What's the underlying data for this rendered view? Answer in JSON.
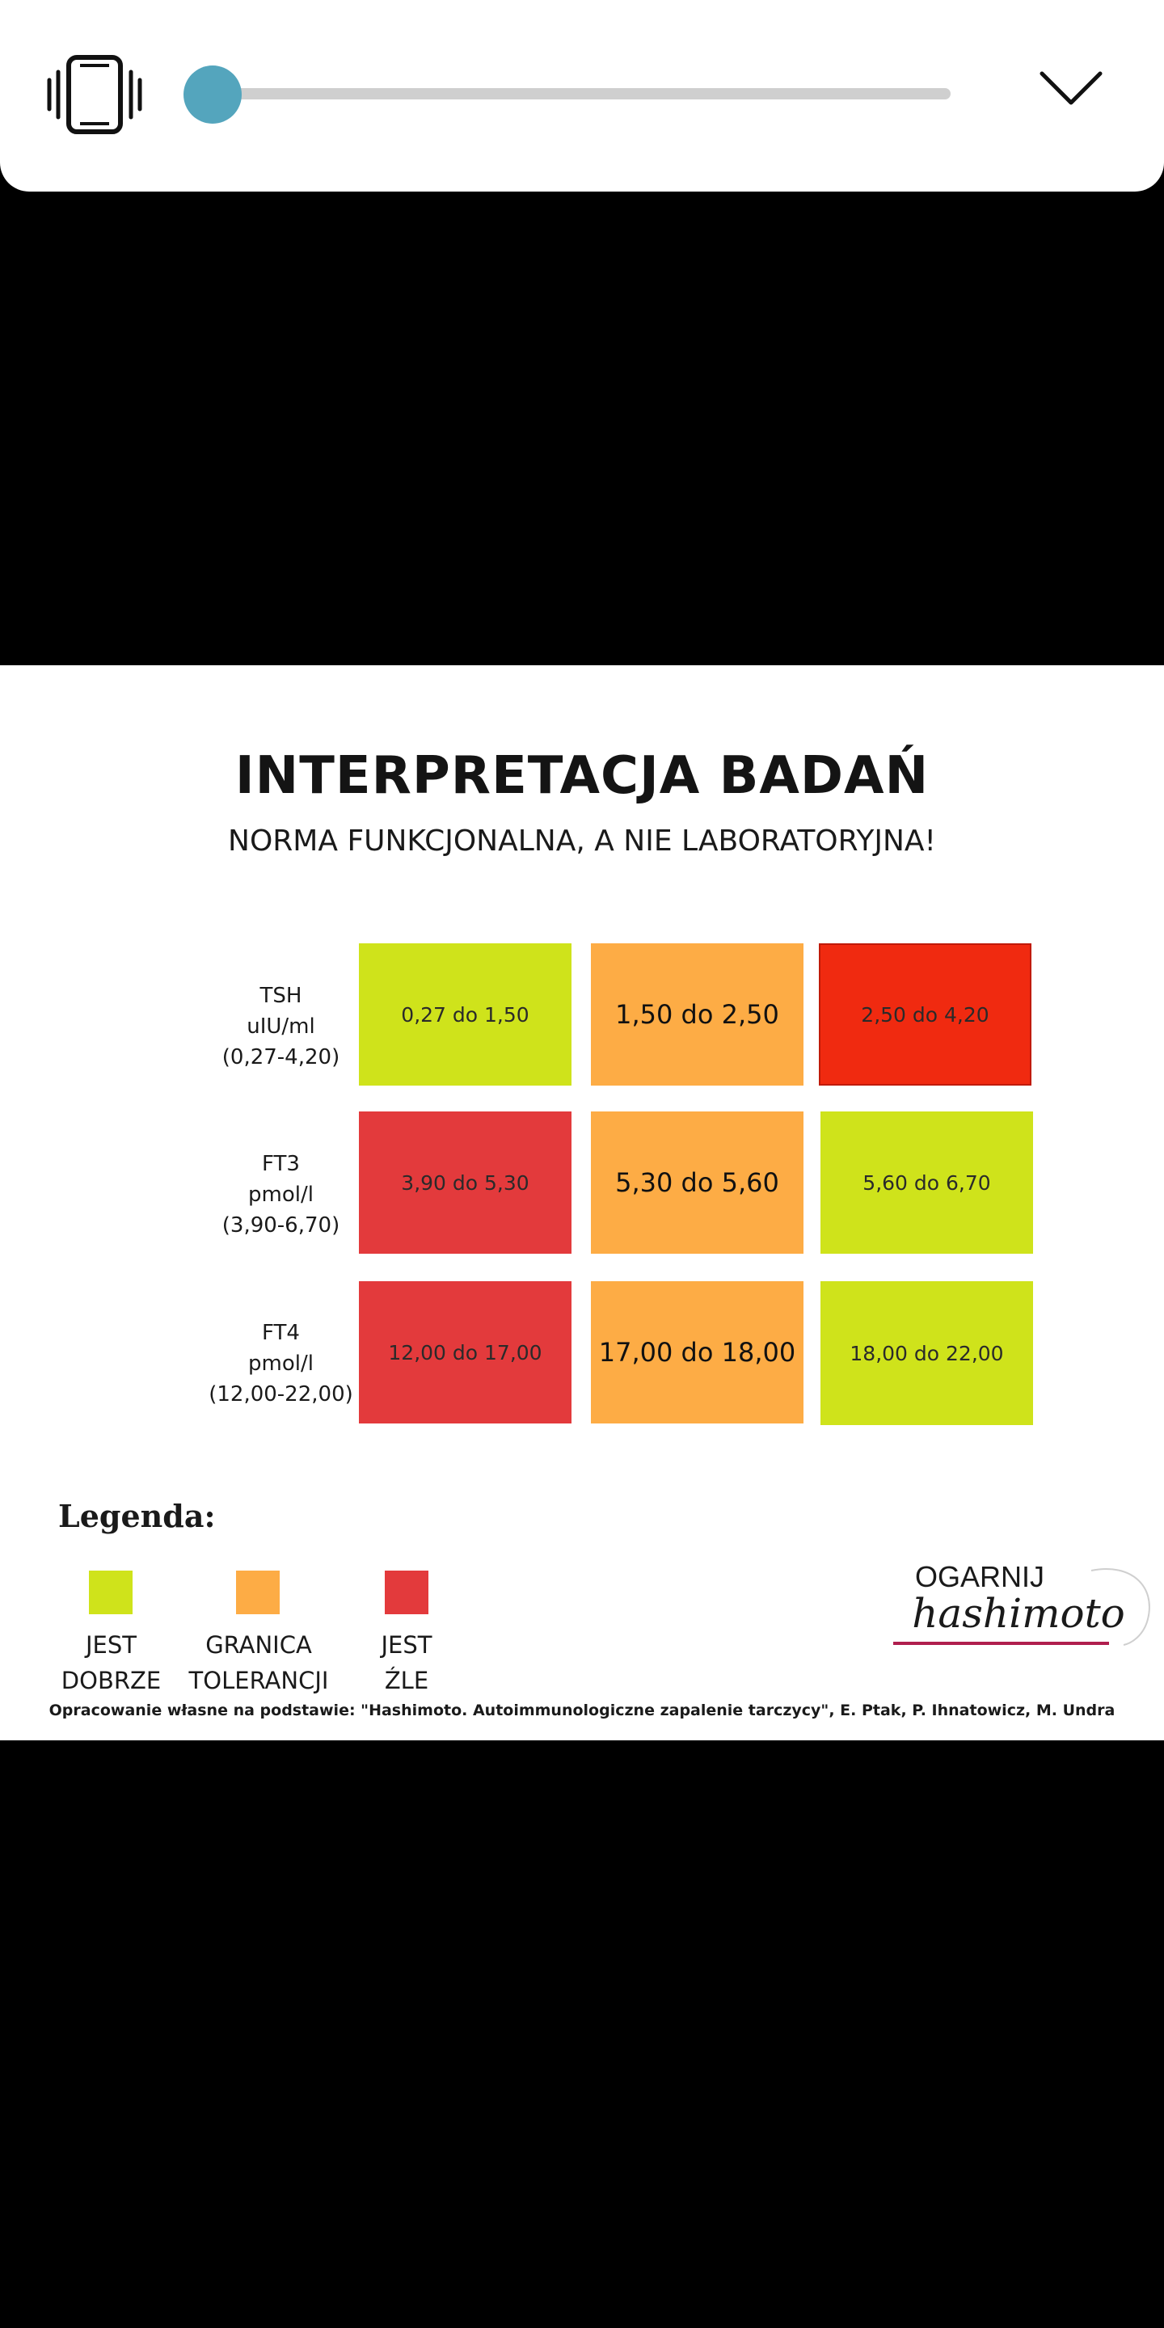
{
  "player": {
    "vibrate_icon": "vibrate-phone-icon",
    "collapse_icon": "chevron-down-icon",
    "seek_progress": 0.02,
    "accent_color": "#54a5bd"
  },
  "infographic": {
    "title": "INTERPRETACJA BADAŃ",
    "subtitle": "NORMA FUNKCJONALNA, A NIE LABORATORYJNA!",
    "rows": [
      {
        "name": "TSH",
        "unit": "uIU/ml",
        "range": "(0,27-4,20)",
        "cells": [
          {
            "text": "0,27 do 1,50",
            "status": "good"
          },
          {
            "text": "1,50 do 2,50",
            "status": "tolerance"
          },
          {
            "text": "2,50 do 4,20",
            "status": "bad"
          }
        ]
      },
      {
        "name": "FT3",
        "unit": "pmol/l",
        "range": "(3,90-6,70)",
        "cells": [
          {
            "text": "3,90 do 5,30",
            "status": "bad"
          },
          {
            "text": "5,30 do 5,60",
            "status": "tolerance"
          },
          {
            "text": "5,60 do 6,70",
            "status": "good"
          }
        ]
      },
      {
        "name": "FT4",
        "unit": "pmol/l",
        "range": "(12,00-22,00)",
        "cells": [
          {
            "text": "12,00 do 17,00",
            "status": "bad"
          },
          {
            "text": "17,00 do 18,00",
            "status": "tolerance"
          },
          {
            "text": "18,00 do 22,00",
            "status": "good"
          }
        ]
      }
    ],
    "legend": {
      "title": "Legenda:",
      "items": [
        {
          "line1": "JEST",
          "line2": "DOBRZE",
          "color": "#cfe31b"
        },
        {
          "line1": "GRANICA",
          "line2": "TOLERANCJI",
          "color": "#fdac45"
        },
        {
          "line1": "JEST",
          "line2": "ŹLE",
          "color": "#e33a3c"
        }
      ]
    },
    "logo": {
      "line1": "OGARNIJ",
      "line2": "hashimoto"
    },
    "footnote": "Opracowanie własne na podstawie: \"Hashimoto. Autoimmunologiczne zapalenie tarczycy\", E. Ptak, P. Ihnatowicz, M. Undra",
    "colors": {
      "good": "#cfe31b",
      "tolerance": "#fdac45",
      "bad": "#e33a3c",
      "bad_bright": "#f02a10",
      "logo_underline": "#b01e4e"
    }
  }
}
